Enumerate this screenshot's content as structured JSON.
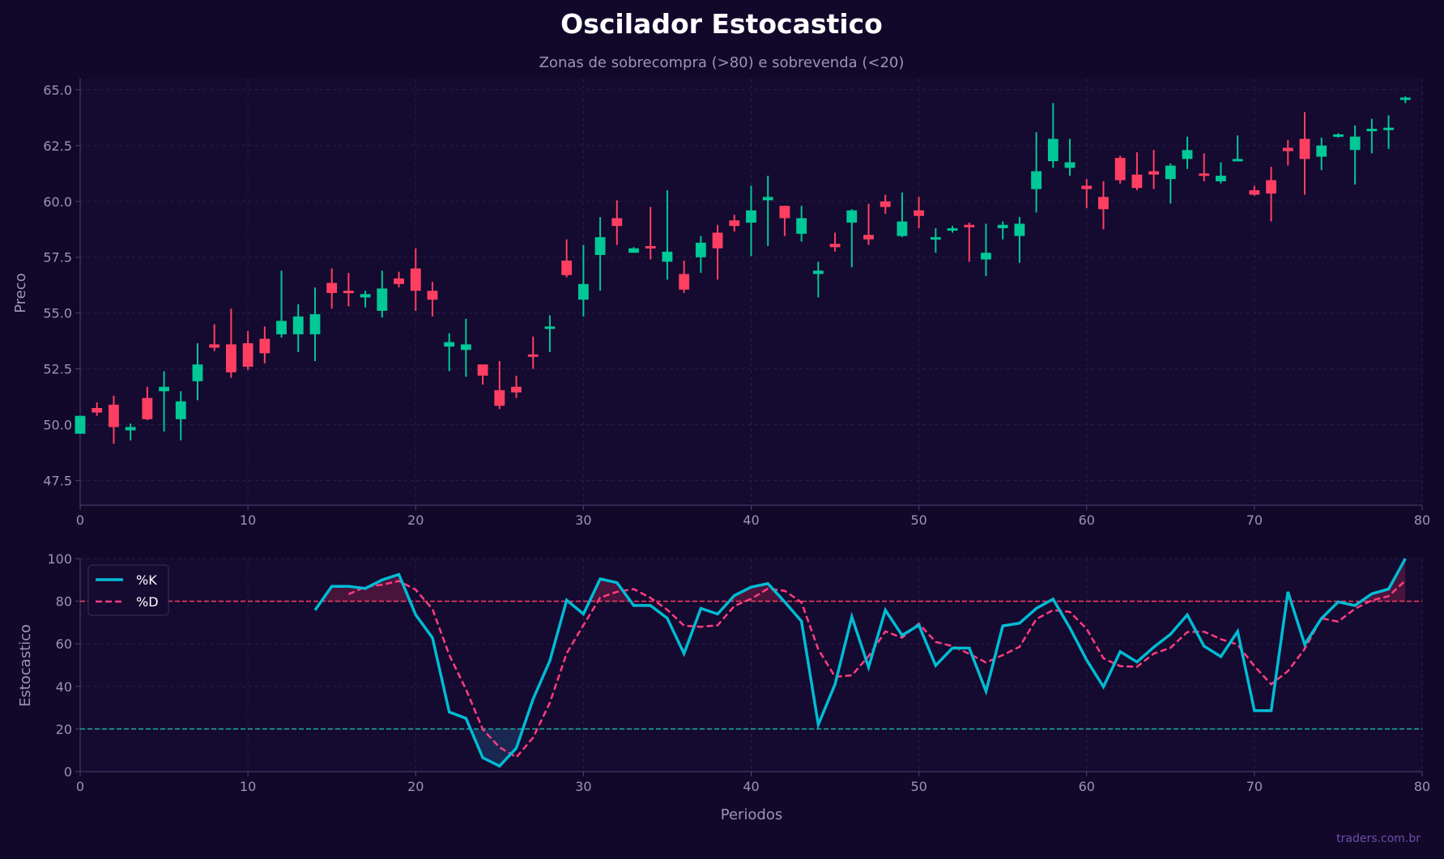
{
  "title": "Oscilador Estocastico",
  "subtitle": "Zonas de sobrecompra (>80) e sobrevenda (<20)",
  "watermark": "traders.com.br",
  "colors": {
    "background": "#12082a",
    "up": "#00c896",
    "down": "#ff3f62",
    "k_line": "#00bcd4",
    "d_line": "#ff3d7f",
    "overbought": "#ff3d62",
    "oversold": "#17b3a3",
    "text": "#9a97b0"
  },
  "chart_data": [
    {
      "type": "candlestick",
      "ylabel": "Preco",
      "xlim": [
        0,
        80
      ],
      "ylim": [
        46.4,
        65.5
      ],
      "grid": true,
      "xticks": [
        "0",
        "10",
        "20",
        "30",
        "40",
        "50",
        "60",
        "70",
        "80"
      ],
      "yticks": [
        "47.5",
        "50.0",
        "52.5",
        "55.0",
        "57.5",
        "60.0",
        "62.5",
        "65.0"
      ],
      "ohlc": [
        [
          49.6,
          50.4,
          49.6,
          50.4
        ],
        [
          50.75,
          51.0,
          50.4,
          50.55
        ],
        [
          50.9,
          51.3,
          49.15,
          49.9
        ],
        [
          49.75,
          50.05,
          49.3,
          49.9
        ],
        [
          51.2,
          51.7,
          50.2,
          50.25
        ],
        [
          51.5,
          52.4,
          49.7,
          51.7
        ],
        [
          50.25,
          51.5,
          49.3,
          51.05
        ],
        [
          51.95,
          53.65,
          51.1,
          52.7
        ],
        [
          53.6,
          54.5,
          53.3,
          53.45
        ],
        [
          53.6,
          55.2,
          52.1,
          52.35
        ],
        [
          53.65,
          54.2,
          52.45,
          52.6
        ],
        [
          53.85,
          54.4,
          52.75,
          53.2
        ],
        [
          54.05,
          56.9,
          53.9,
          54.65
        ],
        [
          54.05,
          55.4,
          53.25,
          54.85
        ],
        [
          54.05,
          56.15,
          52.85,
          54.95
        ],
        [
          56.35,
          57.0,
          55.2,
          55.9
        ],
        [
          56.0,
          56.8,
          55.3,
          55.9
        ],
        [
          55.7,
          56.0,
          55.25,
          55.85
        ],
        [
          55.1,
          56.9,
          54.8,
          56.1
        ],
        [
          56.55,
          56.85,
          56.15,
          56.3
        ],
        [
          57.0,
          57.9,
          55.1,
          56.0
        ],
        [
          56.0,
          56.4,
          54.85,
          55.6
        ],
        [
          53.5,
          54.1,
          52.4,
          53.7
        ],
        [
          53.35,
          54.75,
          52.15,
          53.6
        ],
        [
          52.7,
          52.7,
          51.8,
          52.2
        ],
        [
          51.55,
          52.85,
          50.7,
          50.85
        ],
        [
          51.7,
          52.2,
          51.2,
          51.45
        ],
        [
          53.15,
          53.95,
          52.5,
          53.05
        ],
        [
          54.3,
          54.9,
          53.25,
          54.4
        ],
        [
          57.35,
          58.3,
          56.6,
          56.7
        ],
        [
          55.6,
          58.05,
          54.85,
          56.3
        ],
        [
          57.6,
          59.3,
          56.0,
          58.4
        ],
        [
          59.25,
          60.05,
          58.05,
          58.9
        ],
        [
          57.7,
          57.95,
          57.7,
          57.9
        ],
        [
          58.0,
          59.75,
          57.4,
          57.9
        ],
        [
          57.3,
          60.5,
          56.5,
          57.75
        ],
        [
          56.75,
          57.35,
          55.9,
          56.05
        ],
        [
          57.5,
          58.45,
          56.8,
          58.15
        ],
        [
          58.6,
          58.95,
          56.5,
          57.9
        ],
        [
          59.15,
          59.4,
          58.65,
          58.9
        ],
        [
          59.05,
          60.7,
          57.55,
          59.6
        ],
        [
          60.05,
          61.15,
          58.0,
          60.2
        ],
        [
          59.8,
          59.8,
          58.45,
          59.25
        ],
        [
          58.55,
          59.8,
          58.2,
          59.25
        ],
        [
          56.75,
          57.3,
          55.7,
          56.9
        ],
        [
          58.1,
          58.6,
          57.75,
          57.95
        ],
        [
          59.05,
          59.65,
          57.05,
          59.6
        ],
        [
          58.5,
          59.9,
          58.05,
          58.3
        ],
        [
          60.0,
          60.3,
          59.45,
          59.75
        ],
        [
          58.45,
          60.4,
          58.4,
          59.1
        ],
        [
          59.6,
          60.2,
          58.8,
          59.35
        ],
        [
          58.35,
          58.8,
          57.7,
          58.4
        ],
        [
          58.7,
          58.9,
          58.6,
          58.8
        ],
        [
          58.95,
          59.05,
          57.3,
          58.85
        ],
        [
          57.4,
          59.0,
          56.65,
          57.7
        ],
        [
          58.8,
          59.1,
          58.3,
          58.95
        ],
        [
          58.45,
          59.3,
          57.25,
          59.0
        ],
        [
          60.55,
          63.1,
          59.5,
          61.35
        ],
        [
          61.8,
          64.4,
          61.5,
          62.8
        ],
        [
          61.5,
          62.8,
          61.15,
          61.75
        ],
        [
          60.7,
          61.0,
          59.7,
          60.55
        ],
        [
          60.2,
          60.9,
          58.75,
          59.65
        ],
        [
          61.95,
          62.05,
          60.8,
          60.95
        ],
        [
          61.2,
          62.2,
          60.5,
          60.6
        ],
        [
          61.35,
          62.3,
          60.55,
          61.2
        ],
        [
          61.0,
          61.7,
          59.9,
          61.6
        ],
        [
          61.9,
          62.9,
          61.45,
          62.3
        ],
        [
          61.25,
          62.15,
          60.9,
          61.15
        ],
        [
          60.9,
          61.75,
          60.8,
          61.15
        ],
        [
          61.8,
          62.95,
          61.8,
          61.9
        ],
        [
          60.5,
          60.7,
          60.25,
          60.3
        ],
        [
          60.95,
          61.55,
          59.1,
          60.35
        ],
        [
          62.4,
          62.75,
          61.6,
          62.25
        ],
        [
          62.8,
          64.0,
          60.3,
          61.9
        ],
        [
          62.0,
          62.85,
          61.4,
          62.5
        ],
        [
          62.9,
          63.05,
          62.85,
          63.0
        ],
        [
          62.3,
          63.4,
          60.75,
          62.9
        ],
        [
          63.15,
          63.7,
          62.15,
          63.25
        ],
        [
          63.2,
          63.85,
          62.35,
          63.3
        ],
        [
          64.55,
          64.7,
          64.4,
          64.65
        ]
      ],
      "ohlc_fields": [
        "open",
        "high",
        "low",
        "close"
      ]
    },
    {
      "type": "line",
      "xlabel": "Periodos",
      "ylabel": "Estocastico",
      "xlim": [
        0,
        80
      ],
      "ylim": [
        0,
        100
      ],
      "grid": true,
      "legend": "top-left",
      "xticks": [
        "0",
        "10",
        "20",
        "30",
        "40",
        "50",
        "60",
        "70",
        "80"
      ],
      "yticks": [
        "0",
        "20",
        "40",
        "60",
        "80",
        "100"
      ],
      "levels": {
        "overbought": 80,
        "oversold": 20
      },
      "series": [
        {
          "name": "%K",
          "x_start": 14,
          "values": [
            75.8,
            87,
            87,
            86,
            90,
            92.6,
            73.6,
            62.8,
            28,
            25,
            6.5,
            2.6,
            11,
            34,
            52,
            80.5,
            74,
            90.5,
            88.7,
            78,
            78,
            72,
            55.4,
            76.6,
            74,
            82.7,
            86.6,
            88.3,
            79.7,
            70.6,
            22,
            41,
            72.7,
            49,
            75.8,
            64,
            68.8,
            49.8,
            58,
            58,
            37.7,
            68.4,
            69.7,
            76.6,
            81,
            67.5,
            52.4,
            39.8,
            56.3,
            51.5,
            58.4,
            64.5,
            73.6,
            58.9,
            54,
            65.8,
            28.6,
            28.6,
            84.4,
            59.7,
            71.9,
            79.7,
            78,
            83.5,
            85.7,
            100
          ]
        },
        {
          "name": "%D",
          "x_start": 16,
          "values": [
            83.3,
            86.7,
            87.7,
            89.5,
            85.4,
            76.3,
            54.8,
            38.6,
            19.8,
            11.4,
            6.7,
            15.9,
            32.3,
            55.5,
            68.8,
            81.7,
            84.4,
            85.7,
            81.6,
            76,
            68.5,
            68,
            68.7,
            77.8,
            81.1,
            85.9,
            84.9,
            79.5,
            57.4,
            44.5,
            45.2,
            54.2,
            65.8,
            62.9,
            69.5,
            60.9,
            58.9,
            55.3,
            51.2,
            54.7,
            58.6,
            71.6,
            75.8,
            75,
            67,
            53.2,
            49.5,
            49.2,
            55.4,
            58.1,
            65.5,
            65.7,
            62.2,
            59.6,
            49.5,
            41,
            47.2,
            57.6,
            72,
            70.4,
            76.5,
            80.4,
            82.4,
            89.7
          ]
        }
      ]
    }
  ]
}
